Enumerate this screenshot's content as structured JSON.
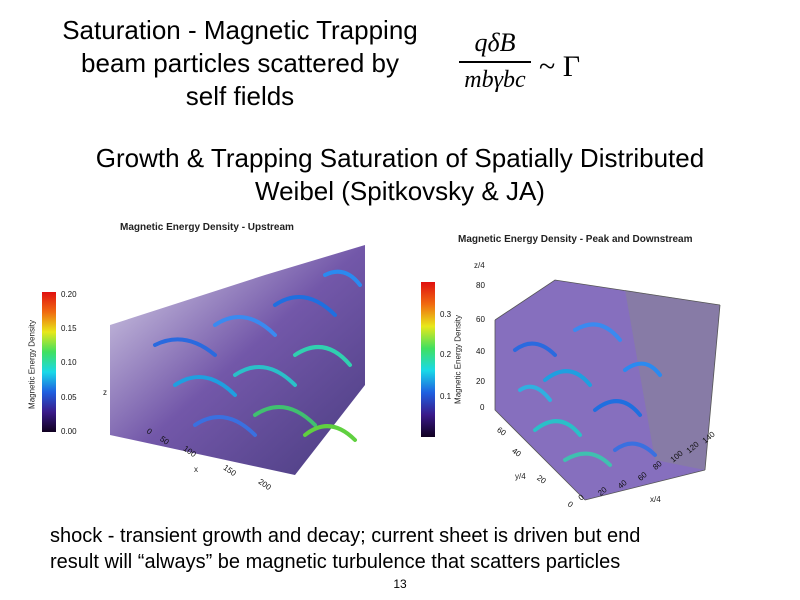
{
  "slide": {
    "title_lines": [
      "Saturation - Magnetic Trapping",
      "beam particles scattered by",
      "self fields"
    ],
    "formula": {
      "numerator": "qδB",
      "denominator": "mbγbc",
      "relation": "~ Γ"
    },
    "subtitle_lines": [
      "Growth & Trapping Saturation of Spatially Distributed",
      "Weibel (Spitkovsky & JA)"
    ],
    "left_panel": {
      "title": "Magnetic Energy Density - Upstream",
      "colorbar_label": "Magnetic Energy Density",
      "colorbar_ticks": [
        "0.20",
        "0.15",
        "0.10",
        "0.05",
        "0.00"
      ],
      "x_axis": "x",
      "x_ticks": [
        "0",
        "50",
        "100",
        "150",
        "200"
      ],
      "z_axis": "z"
    },
    "right_panel": {
      "title": "Magnetic Energy Density - Peak and Downstream",
      "colorbar_label": "Magnetic Energy Density",
      "colorbar_ticks": [
        "0.3",
        "0.2",
        "0.1"
      ],
      "z_axis": "z/4",
      "z_ticks": [
        "80",
        "60",
        "40",
        "20",
        "0"
      ],
      "y_axis": "y/4",
      "y_ticks": [
        "60",
        "40",
        "20",
        "0"
      ],
      "x_axis": "x/4",
      "x_ticks": [
        "0",
        "20",
        "40",
        "60",
        "80",
        "100",
        "120",
        "140"
      ]
    },
    "footer_lines": [
      "shock - transient growth and decay; current sheet is driven but end",
      "result will “always” be magnetic turbulence that scatters particles"
    ],
    "page_number": "13"
  }
}
